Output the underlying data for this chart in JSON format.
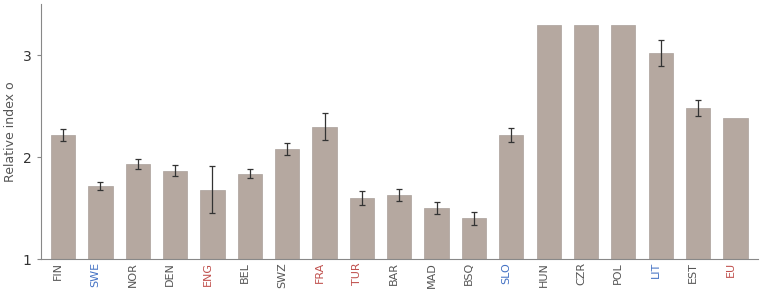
{
  "categories": [
    "FIN",
    "SWE",
    "NOR",
    "DEN",
    "ENG",
    "BEL",
    "SWZ",
    "FRA",
    "TUR",
    "BAR",
    "MAD",
    "BSQ",
    "SLO",
    "HUN",
    "CZR",
    "POL",
    "LIT",
    "EST",
    "EU"
  ],
  "values": [
    2.22,
    1.72,
    1.93,
    1.87,
    1.68,
    1.84,
    2.08,
    2.3,
    1.6,
    1.63,
    1.5,
    1.4,
    2.22,
    3.3,
    3.3,
    3.3,
    3.02,
    2.48,
    2.38
  ],
  "err_low": [
    0.06,
    0.04,
    0.05,
    0.05,
    0.23,
    0.04,
    0.06,
    0.13,
    0.07,
    0.06,
    0.06,
    0.06,
    0.07,
    0.0,
    0.0,
    0.0,
    0.13,
    0.08,
    0.0
  ],
  "err_high": [
    0.06,
    0.04,
    0.05,
    0.05,
    0.23,
    0.04,
    0.06,
    0.13,
    0.07,
    0.06,
    0.06,
    0.06,
    0.07,
    0.0,
    0.0,
    0.0,
    0.13,
    0.08,
    0.0
  ],
  "bar_color": "#b5a8a0",
  "bar_edge_color": "#aaa09a",
  "error_color": "#333333",
  "ylabel": "Relative index o",
  "yticks": [
    1,
    2,
    3
  ],
  "ylim": [
    1.0,
    3.5
  ],
  "label_colors": {
    "FIN": "#555555",
    "SWE": "#4472c4",
    "NOR": "#555555",
    "DEN": "#555555",
    "ENG": "#c0504d",
    "BEL": "#555555",
    "SWZ": "#555555",
    "FRA": "#c0504d",
    "TUR": "#c0504d",
    "BAR": "#555555",
    "MAD": "#555555",
    "BSQ": "#555555",
    "SLO": "#4472c4",
    "HUN": "#555555",
    "CZR": "#555555",
    "POL": "#555555",
    "LIT": "#4472c4",
    "EST": "#555555",
    "EU": "#c0504d"
  },
  "background_color": "#ffffff",
  "figsize": [
    7.62,
    2.92
  ],
  "dpi": 100
}
